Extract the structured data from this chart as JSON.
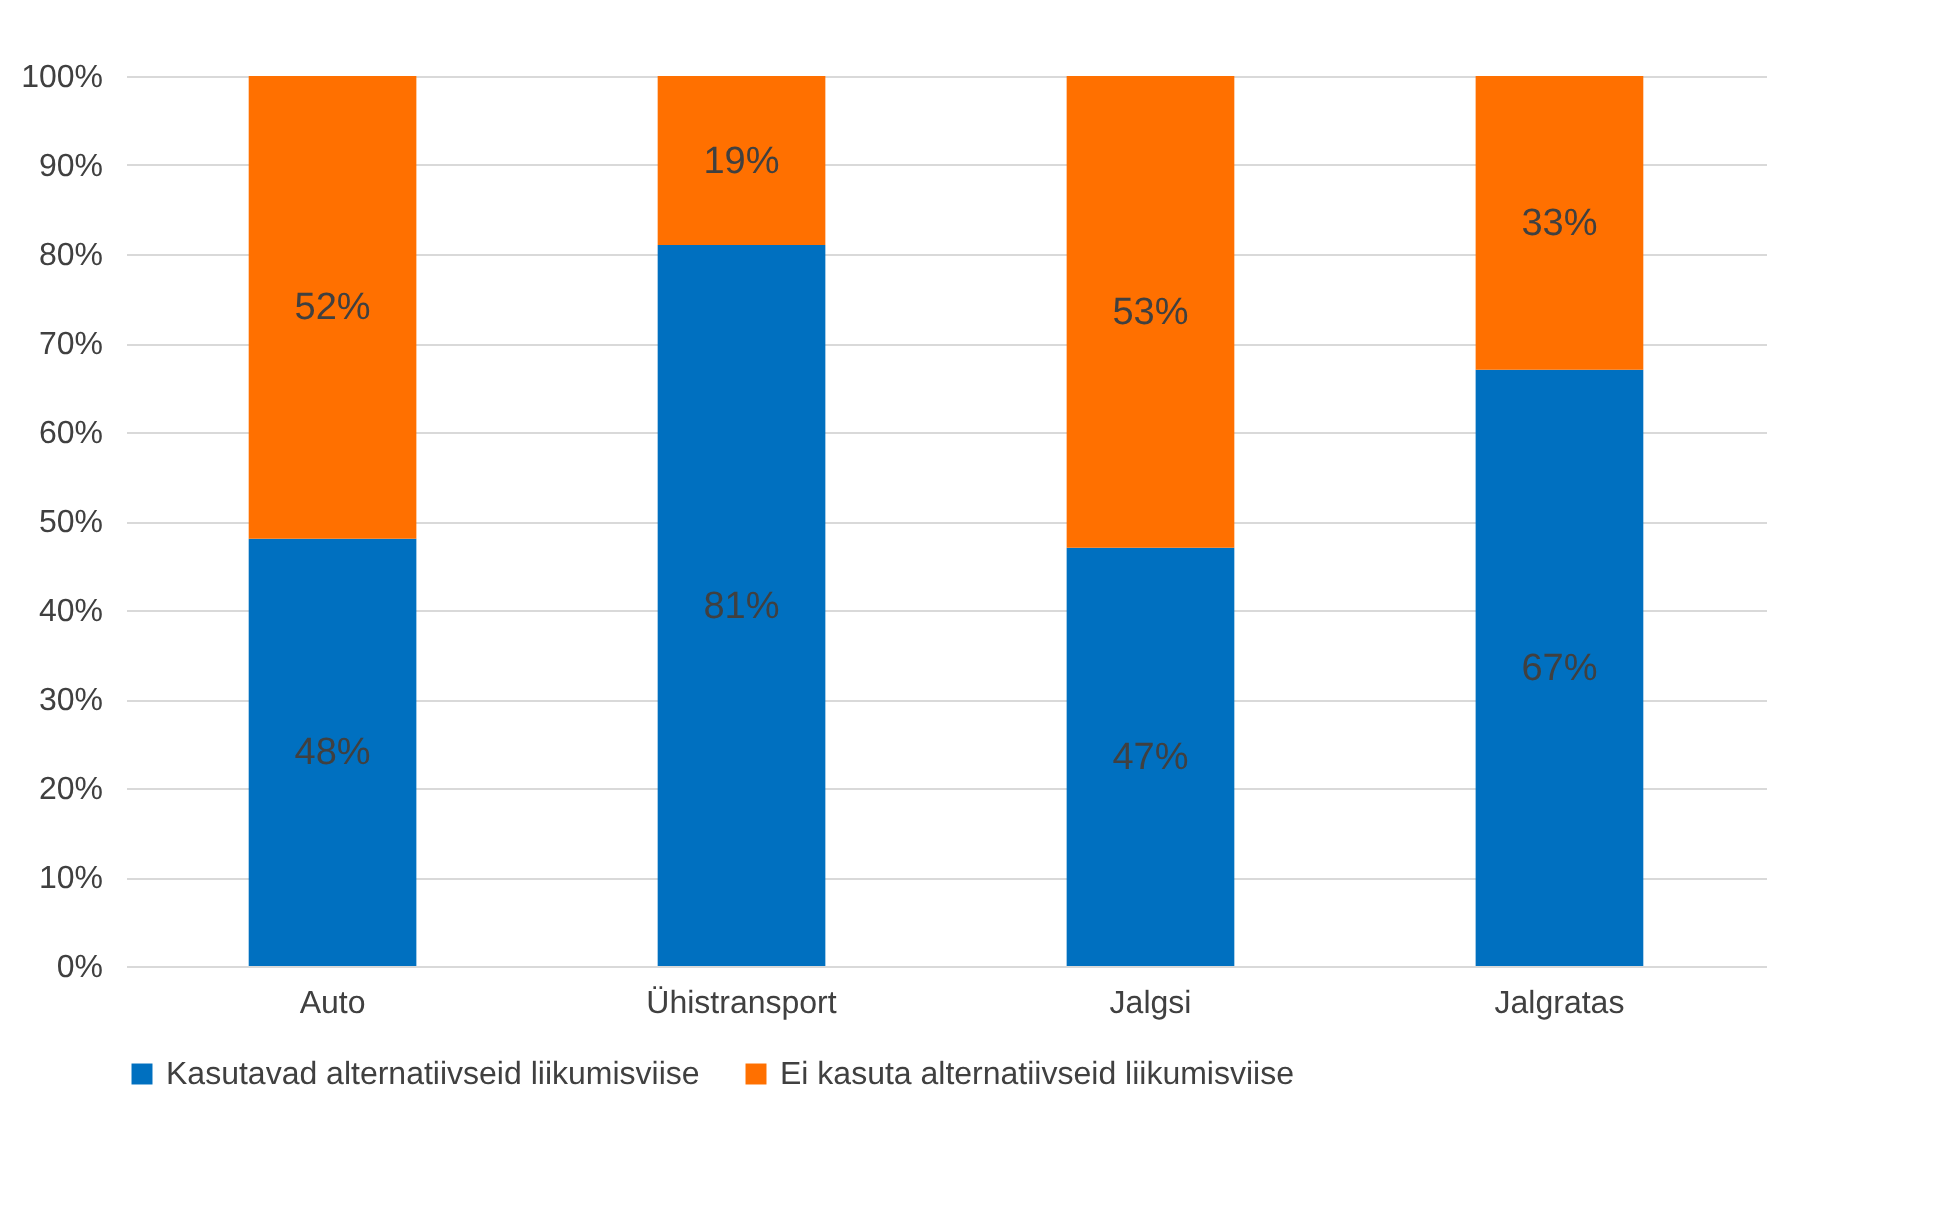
{
  "chart_data": {
    "type": "bar",
    "stacked": true,
    "categories": [
      "Auto",
      "Ühistransport",
      "Jalgsi",
      "Jalgratas"
    ],
    "series": [
      {
        "name": "Kasutavad alternatiivseid liikumisviise",
        "color": "#0070c0",
        "values": [
          48,
          81,
          47,
          67
        ],
        "value_labels": [
          "48%",
          "81%",
          "47%",
          "67%"
        ]
      },
      {
        "name": "Ei kasuta alternatiivseid liikumisviise",
        "color": "#ff7000",
        "values": [
          52,
          19,
          53,
          33
        ],
        "value_labels": [
          "52%",
          "19%",
          "53%",
          "33%"
        ]
      }
    ],
    "ylim": [
      0,
      100
    ],
    "yticks": [
      {
        "value": 0,
        "label": "0%"
      },
      {
        "value": 10,
        "label": "10%"
      },
      {
        "value": 20,
        "label": "20%"
      },
      {
        "value": 30,
        "label": "30%"
      },
      {
        "value": 40,
        "label": "40%"
      },
      {
        "value": 50,
        "label": "50%"
      },
      {
        "value": 60,
        "label": "60%"
      },
      {
        "value": 70,
        "label": "70%"
      },
      {
        "value": 80,
        "label": "80%"
      },
      {
        "value": 90,
        "label": "90%"
      },
      {
        "value": 100,
        "label": "100%"
      }
    ],
    "grid": "y",
    "legend": "bottom"
  }
}
